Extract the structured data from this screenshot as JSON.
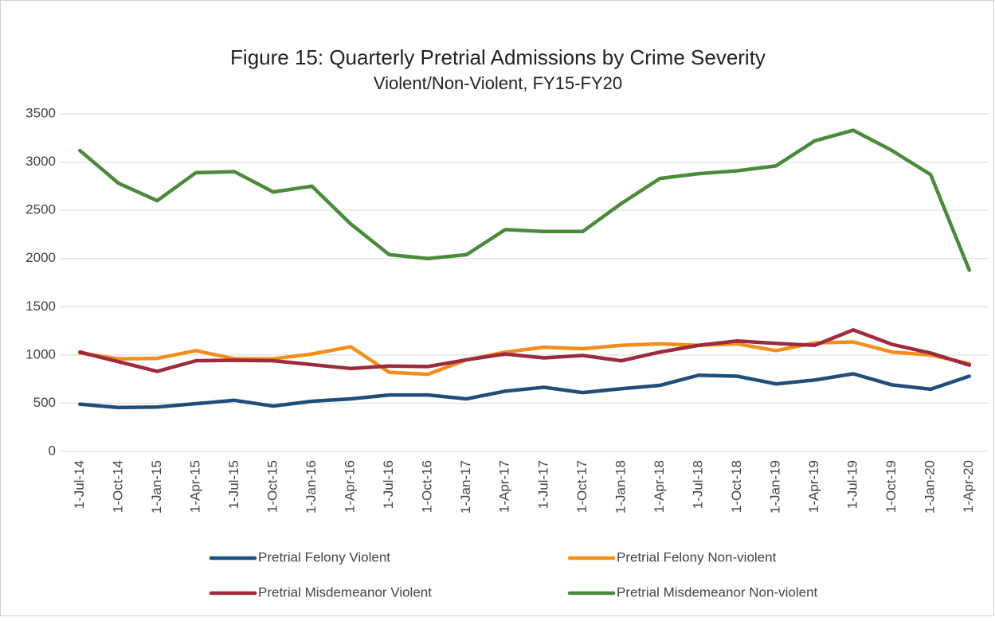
{
  "chart_data": {
    "type": "line",
    "title": "Figure 15: Quarterly Pretrial Admissions by Crime Severity",
    "subtitle": "Violent/Non-Violent, FY15-FY20",
    "categories": [
      "1-Jul-14",
      "1-Oct-14",
      "1-Jan-15",
      "1-Apr-15",
      "1-Jul-15",
      "1-Oct-15",
      "1-Jan-16",
      "1-Apr-16",
      "1-Jul-16",
      "1-Oct-16",
      "1-Jan-17",
      "1-Apr-17",
      "1-Jul-17",
      "1-Oct-17",
      "1-Jan-18",
      "1-Apr-18",
      "1-Jul-18",
      "1-Oct-18",
      "1-Jan-19",
      "1-Apr-19",
      "1-Jul-19",
      "1-Oct-19",
      "1-Jan-20",
      "1-Apr-20"
    ],
    "series": [
      {
        "name": "Pretrial Felony Violent",
        "color": "#1f4e79",
        "values": [
          490,
          455,
          460,
          495,
          530,
          470,
          520,
          545,
          585,
          585,
          545,
          625,
          665,
          610,
          650,
          685,
          790,
          780,
          700,
          740,
          805,
          690,
          645,
          780
        ]
      },
      {
        "name": "Pretrial Felony Non-violent",
        "color": "#f28e1c",
        "values": [
          1020,
          960,
          965,
          1045,
          960,
          960,
          1010,
          1085,
          820,
          800,
          950,
          1030,
          1080,
          1065,
          1100,
          1115,
          1100,
          1115,
          1045,
          1125,
          1135,
          1030,
          1000,
          910
        ]
      },
      {
        "name": "Pretrial Misdemeanor Violent",
        "color": "#9e2a3f",
        "values": [
          1030,
          930,
          830,
          940,
          945,
          940,
          900,
          860,
          885,
          880,
          950,
          1010,
          970,
          995,
          940,
          1030,
          1100,
          1145,
          1120,
          1100,
          1260,
          1110,
          1020,
          895
        ]
      },
      {
        "name": "Pretrial Misdemeanor Non-violent",
        "color": "#4a8a3a",
        "values": [
          3120,
          2780,
          2600,
          2890,
          2900,
          2690,
          2750,
          2360,
          2040,
          2000,
          2040,
          2300,
          2280,
          2280,
          2570,
          2830,
          2880,
          2910,
          2960,
          3220,
          3330,
          3120,
          2870,
          1880
        ]
      }
    ],
    "ylim": [
      0,
      3500
    ],
    "yticks": [
      0,
      500,
      1000,
      1500,
      2000,
      2500,
      3000,
      3500
    ],
    "grid": true
  }
}
